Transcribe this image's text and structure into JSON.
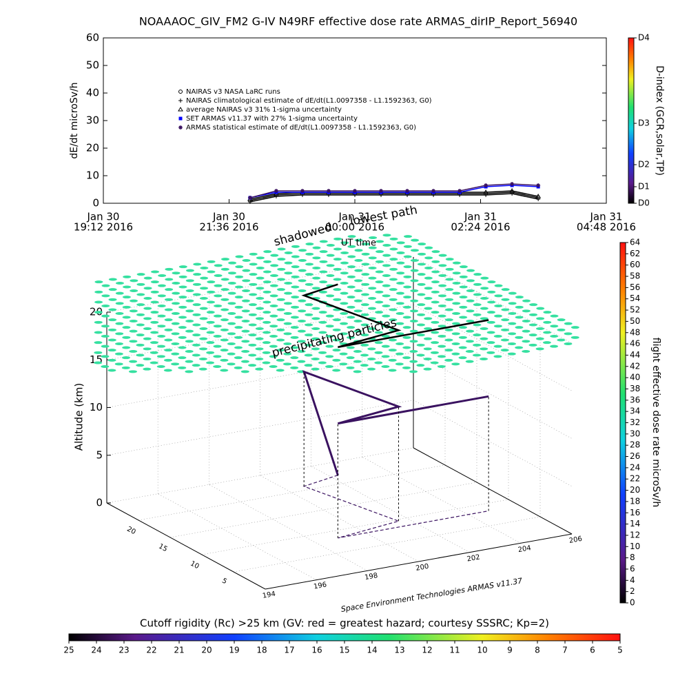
{
  "chart_data": [
    {
      "type": "scatter",
      "title": "NOAAAOC_GIV_FM2 G-IV    N49RF   effective dose rate ARMAS_dirIP_Report_56940",
      "ylabel": "dE/dt microSv/h",
      "ylim": [
        0,
        60
      ],
      "yticks": [
        0,
        10,
        20,
        30,
        40,
        50,
        60
      ],
      "xlim": [
        "2016-01-30T19:12",
        "2016-01-31T04:48"
      ],
      "xticks": [
        {
          "value": "2016-01-30T19:12",
          "label": [
            "Jan 30",
            "19:12 2016"
          ]
        },
        {
          "value": "2016-01-30T21:36",
          "label": [
            "Jan 30",
            "21:36 2016"
          ]
        },
        {
          "value": "2016-01-31T00:00",
          "label": [
            "Jan 31",
            "00:00 2016"
          ]
        },
        {
          "value": "2016-01-31T02:24",
          "label": [
            "Jan 31",
            "02:24 2016"
          ]
        },
        {
          "value": "2016-01-31T04:48",
          "label": [
            "Jan 31",
            "04:48 2016"
          ]
        }
      ],
      "x": [
        "2016-01-30T22:00",
        "2016-01-30T22:30",
        "2016-01-30T23:00",
        "2016-01-30T23:30",
        "2016-01-31T00:00",
        "2016-01-31T00:30",
        "2016-01-31T01:00",
        "2016-01-31T01:30",
        "2016-01-31T02:00",
        "2016-01-31T02:30",
        "2016-01-31T03:00",
        "2016-01-31T03:30"
      ],
      "series": [
        {
          "name": "NAIRAS v3 NASA LaRC runs",
          "color": "#000000",
          "marker": "circle",
          "values": [
            1,
            3,
            3.5,
            3.5,
            3.5,
            3.5,
            3.5,
            3.5,
            3.5,
            3.5,
            4,
            2
          ]
        },
        {
          "name": "NAIRAS climatological estimate of dE/dt(L1.0097358 - L1.1592363, G0)",
          "color": "#000000",
          "marker": "plus",
          "values": [
            0.5,
            2.5,
            3,
            3,
            3,
            3,
            3,
            3,
            3,
            3,
            3.5,
            1.5
          ]
        },
        {
          "name": "average NAIRAS v3 31% 1-sigma uncertainty",
          "color": "#000000",
          "marker": "triangle",
          "values": [
            1.5,
            3.5,
            4,
            4,
            4,
            4,
            4,
            4,
            4,
            4,
            4.5,
            2.5
          ]
        },
        {
          "name": "SET ARMAS v11.37 with 27% 1-sigma uncertainty",
          "color": "#0000ff",
          "marker": "square",
          "values": [
            2,
            4,
            4,
            4,
            4,
            4,
            4,
            4,
            4,
            6,
            6.5,
            6
          ]
        },
        {
          "name": "ARMAS statistical estimate of dE/dt(L1.0097358 - L1.1592363, G0)",
          "color": "#3a1260",
          "marker": "star",
          "values": [
            2,
            4.5,
            4.5,
            4.5,
            4.5,
            4.5,
            4.5,
            4.5,
            4.5,
            6.5,
            7,
            6.5
          ]
        }
      ],
      "colorbar": {
        "label": "D-index (GCR,solar,TP)",
        "ticks": [
          {
            "value": 0,
            "label": "D0"
          },
          {
            "value": 6,
            "label": "D1"
          },
          {
            "value": 14,
            "label": "D2"
          },
          {
            "value": 29,
            "label": "D3"
          },
          {
            "value": 60,
            "label": "D4"
          }
        ]
      }
    },
    {
      "type": "scatter3d",
      "zlabel": "Altitude (km)",
      "zlim": [
        0,
        20
      ],
      "zticks": [
        0,
        5,
        10,
        15,
        20
      ],
      "xlim": [
        194,
        206
      ],
      "xticks": [
        194,
        196,
        198,
        200,
        202,
        204,
        206
      ],
      "ylim": [
        0,
        25
      ],
      "yticks": [
        5,
        10,
        15,
        20
      ],
      "annotations": [
        "shadowed",
        "lowest path",
        "UT time",
        "precipitating particles"
      ],
      "credit": "Space Environment Technologies ARMAS v11.37",
      "track": {
        "lon": [
          202.3,
          200.7,
          201.6,
          198.9,
          204.8
        ],
        "lat": [
          22,
          20.9,
          9.6,
          8.3,
          8.3
        ],
        "alt": [
          0,
          12,
          12,
          12,
          12
        ],
        "color": "#3a1260"
      },
      "colorbar": {
        "label": "flight effective dose rate microSv/h",
        "ylim": [
          0,
          64
        ],
        "ticks": [
          0,
          2,
          4,
          6,
          8,
          10,
          12,
          14,
          16,
          18,
          20,
          22,
          24,
          26,
          28,
          30,
          32,
          34,
          36,
          38,
          40,
          42,
          44,
          46,
          48,
          50,
          52,
          54,
          56,
          58,
          60,
          62,
          64
        ]
      },
      "rigidity_bar": {
        "title": "Cutoff rigidity (Rc) >25 km (GV: red = greatest hazard; courtesy SSSRC; Kp=2)",
        "xlim": [
          25,
          5
        ],
        "xticks": [
          25,
          24,
          23,
          22,
          21,
          20,
          19,
          18,
          17,
          16,
          15,
          14,
          13,
          12,
          11,
          10,
          9,
          8,
          7,
          6,
          5
        ]
      }
    }
  ]
}
